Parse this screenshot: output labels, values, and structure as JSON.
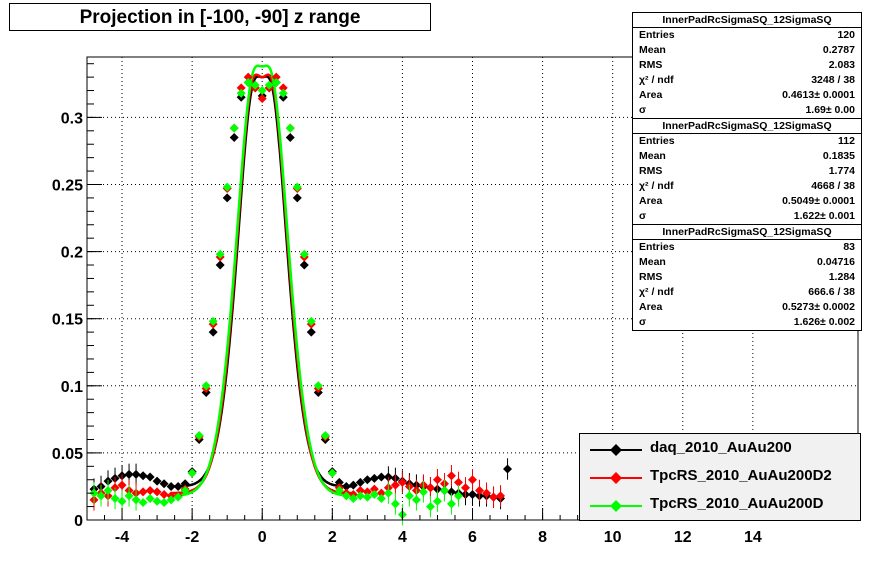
{
  "title": "Projection in [-100, -90] z range",
  "stats": [
    {
      "name": "InnerPadRcSigmaSQ_12SigmaSQ",
      "rows": [
        {
          "label": "Entries",
          "value": "120"
        },
        {
          "label": "Mean",
          "value": "0.2787"
        },
        {
          "label": "RMS",
          "value": "2.083"
        },
        {
          "label": "χ² / ndf",
          "value": "3248 / 38"
        },
        {
          "label": "Area",
          "value": "0.4613± 0.0001"
        },
        {
          "label": "σ",
          "value": "1.69± 0.00"
        }
      ]
    },
    {
      "name": "InnerPadRcSigmaSQ_12SigmaSQ",
      "rows": [
        {
          "label": "Entries",
          "value": "112"
        },
        {
          "label": "Mean",
          "value": "0.1835"
        },
        {
          "label": "RMS",
          "value": "1.774"
        },
        {
          "label": "χ² / ndf",
          "value": "4668 / 38"
        },
        {
          "label": "Area",
          "value": "0.5049± 0.0001"
        },
        {
          "label": "σ",
          "value": "1.622± 0.001"
        }
      ]
    },
    {
      "name": "InnerPadRcSigmaSQ_12SigmaSQ",
      "rows": [
        {
          "label": "Entries",
          "value": "83"
        },
        {
          "label": "Mean",
          "value": "0.04716"
        },
        {
          "label": "RMS",
          "value": "1.284"
        },
        {
          "label": "χ² / ndf",
          "value": "666.6 / 38"
        },
        {
          "label": "Area",
          "value": "0.5273± 0.0002"
        },
        {
          "label": "σ",
          "value": "1.626± 0.002"
        }
      ]
    }
  ],
  "legend": [
    {
      "label": "daq_2010_AuAu200",
      "color": "#000000"
    },
    {
      "label": "TpcRS_2010_AuAu200D2",
      "color": "#ff0000"
    },
    {
      "label": "TpcRS_2010_AuAu200D",
      "color": "#00ff00"
    }
  ],
  "chart_data": {
    "type": "scatter",
    "title": "Projection in [-100, -90] z range",
    "xlabel": "",
    "ylabel": "",
    "xlim": [
      -5,
      17
    ],
    "ylim": [
      0,
      0.345
    ],
    "grid": true,
    "legend_position": "bottom-right",
    "x_ticks": [
      "-4",
      "-2",
      "0",
      "2",
      "4",
      "6",
      "8",
      "10",
      "12",
      "14"
    ],
    "y_ticks": [
      "0",
      "0.05",
      "0.1",
      "0.15",
      "0.2",
      "0.25",
      "0.3"
    ],
    "series": [
      {
        "name": "daq_2010_AuAu200",
        "color": "#000000",
        "x": [
          -4.8,
          -4.6,
          -4.4,
          -4.2,
          -4.0,
          -3.8,
          -3.6,
          -3.4,
          -3.2,
          -3.0,
          -2.8,
          -2.6,
          -2.4,
          -2.2,
          -2.0,
          -1.8,
          -1.6,
          -1.4,
          -1.2,
          -1.0,
          -0.8,
          -0.6,
          -0.4,
          -0.2,
          0.0,
          0.2,
          0.4,
          0.6,
          0.8,
          1.0,
          1.2,
          1.4,
          1.6,
          1.8,
          2.0,
          2.2,
          2.4,
          2.6,
          2.8,
          3.0,
          3.2,
          3.4,
          3.6,
          3.8,
          4.0,
          4.2,
          4.4,
          4.6,
          4.8,
          5.0,
          5.2,
          5.4,
          5.6,
          5.8,
          6.0,
          6.2,
          6.4,
          6.6,
          6.8,
          7.0
        ],
        "y": [
          0.023,
          0.025,
          0.029,
          0.031,
          0.033,
          0.034,
          0.034,
          0.033,
          0.032,
          0.029,
          0.027,
          0.025,
          0.025,
          0.027,
          0.036,
          0.06,
          0.095,
          0.14,
          0.19,
          0.24,
          0.285,
          0.315,
          0.326,
          0.322,
          0.316,
          0.322,
          0.326,
          0.315,
          0.285,
          0.24,
          0.19,
          0.14,
          0.095,
          0.06,
          0.036,
          0.028,
          0.025,
          0.026,
          0.028,
          0.03,
          0.031,
          0.032,
          0.032,
          0.031,
          0.029,
          0.027,
          0.026,
          0.025,
          0.024,
          0.023,
          0.022,
          0.021,
          0.02,
          0.019,
          0.019,
          0.018,
          0.018,
          0.017,
          0.016,
          0.038
        ]
      },
      {
        "name": "TpcRS_2010_AuAu200D2",
        "color": "#ff0000",
        "x": [
          -4.8,
          -4.6,
          -4.4,
          -4.2,
          -4.0,
          -3.8,
          -3.6,
          -3.4,
          -3.2,
          -3.0,
          -2.8,
          -2.6,
          -2.4,
          -2.2,
          -2.0,
          -1.8,
          -1.6,
          -1.4,
          -1.2,
          -1.0,
          -0.8,
          -0.6,
          -0.4,
          -0.2,
          0.0,
          0.2,
          0.4,
          0.6,
          0.8,
          1.0,
          1.2,
          1.4,
          1.6,
          1.8,
          2.0,
          2.2,
          2.4,
          2.6,
          2.8,
          3.0,
          3.2,
          3.4,
          3.6,
          3.8,
          4.0,
          4.2,
          4.4,
          4.6,
          4.8,
          5.0,
          5.2,
          5.4,
          5.6,
          5.8,
          6.0,
          6.2,
          6.4,
          6.6,
          6.8
        ],
        "y": [
          0.015,
          0.02,
          0.018,
          0.024,
          0.026,
          0.022,
          0.02,
          0.021,
          0.022,
          0.021,
          0.019,
          0.018,
          0.018,
          0.023,
          0.035,
          0.062,
          0.098,
          0.146,
          0.196,
          0.247,
          0.292,
          0.322,
          0.33,
          0.322,
          0.314,
          0.322,
          0.33,
          0.322,
          0.292,
          0.247,
          0.196,
          0.146,
          0.098,
          0.062,
          0.035,
          0.024,
          0.02,
          0.019,
          0.022,
          0.021,
          0.023,
          0.02,
          0.024,
          0.026,
          0.028,
          0.025,
          0.022,
          0.026,
          0.024,
          0.03,
          0.027,
          0.033,
          0.028,
          0.024,
          0.03,
          0.022,
          0.02,
          0.017,
          0.018
        ]
      },
      {
        "name": "TpcRS_2010_AuAu200D",
        "color": "#00ff00",
        "x": [
          -4.8,
          -4.6,
          -4.4,
          -4.2,
          -4.0,
          -3.8,
          -3.6,
          -3.4,
          -3.2,
          -3.0,
          -2.8,
          -2.6,
          -2.4,
          -2.2,
          -2.0,
          -1.8,
          -1.6,
          -1.4,
          -1.2,
          -1.0,
          -0.8,
          -0.6,
          -0.4,
          -0.2,
          0.0,
          0.2,
          0.4,
          0.6,
          0.8,
          1.0,
          1.2,
          1.4,
          1.6,
          1.8,
          2.0,
          2.2,
          2.4,
          2.6,
          2.8,
          3.0,
          3.2,
          3.4,
          3.6,
          3.8,
          4.0,
          4.2,
          4.4,
          4.6,
          4.8,
          5.0,
          5.2,
          5.4,
          5.6
        ],
        "y": [
          0.02,
          0.018,
          0.022,
          0.016,
          0.014,
          0.018,
          0.015,
          0.013,
          0.016,
          0.014,
          0.013,
          0.015,
          0.017,
          0.022,
          0.035,
          0.063,
          0.1,
          0.148,
          0.198,
          0.248,
          0.292,
          0.318,
          0.326,
          0.324,
          0.32,
          0.324,
          0.326,
          0.318,
          0.292,
          0.248,
          0.198,
          0.148,
          0.1,
          0.063,
          0.035,
          0.022,
          0.018,
          0.016,
          0.018,
          0.017,
          0.019,
          0.016,
          0.02,
          0.012,
          0.004,
          0.018,
          0.015,
          0.021,
          0.01,
          0.014,
          0.022,
          0.012,
          0.018
        ]
      }
    ],
    "fits": [
      {
        "series": "daq_2010_AuAu200",
        "color": "#000000",
        "mean": 0.0,
        "sigma": 0.6,
        "peak": 0.36,
        "dip": 0.055,
        "dip_sigma": 0.22,
        "offset": 0.025,
        "range": [
          -2.6,
          2.6
        ]
      },
      {
        "series": "TpcRS_2010_AuAu200D2",
        "color": "#ff0000",
        "mean": 0.0,
        "sigma": 0.62,
        "peak": 0.37,
        "dip": 0.06,
        "dip_sigma": 0.22,
        "offset": 0.02,
        "range": [
          -2.6,
          2.6
        ]
      },
      {
        "series": "TpcRS_2010_AuAu200D",
        "color": "#00ff00",
        "mean": 0.0,
        "sigma": 0.64,
        "peak": 0.37,
        "dip": 0.05,
        "dip_sigma": 0.22,
        "offset": 0.018,
        "range": [
          -2.6,
          2.6
        ]
      }
    ]
  }
}
